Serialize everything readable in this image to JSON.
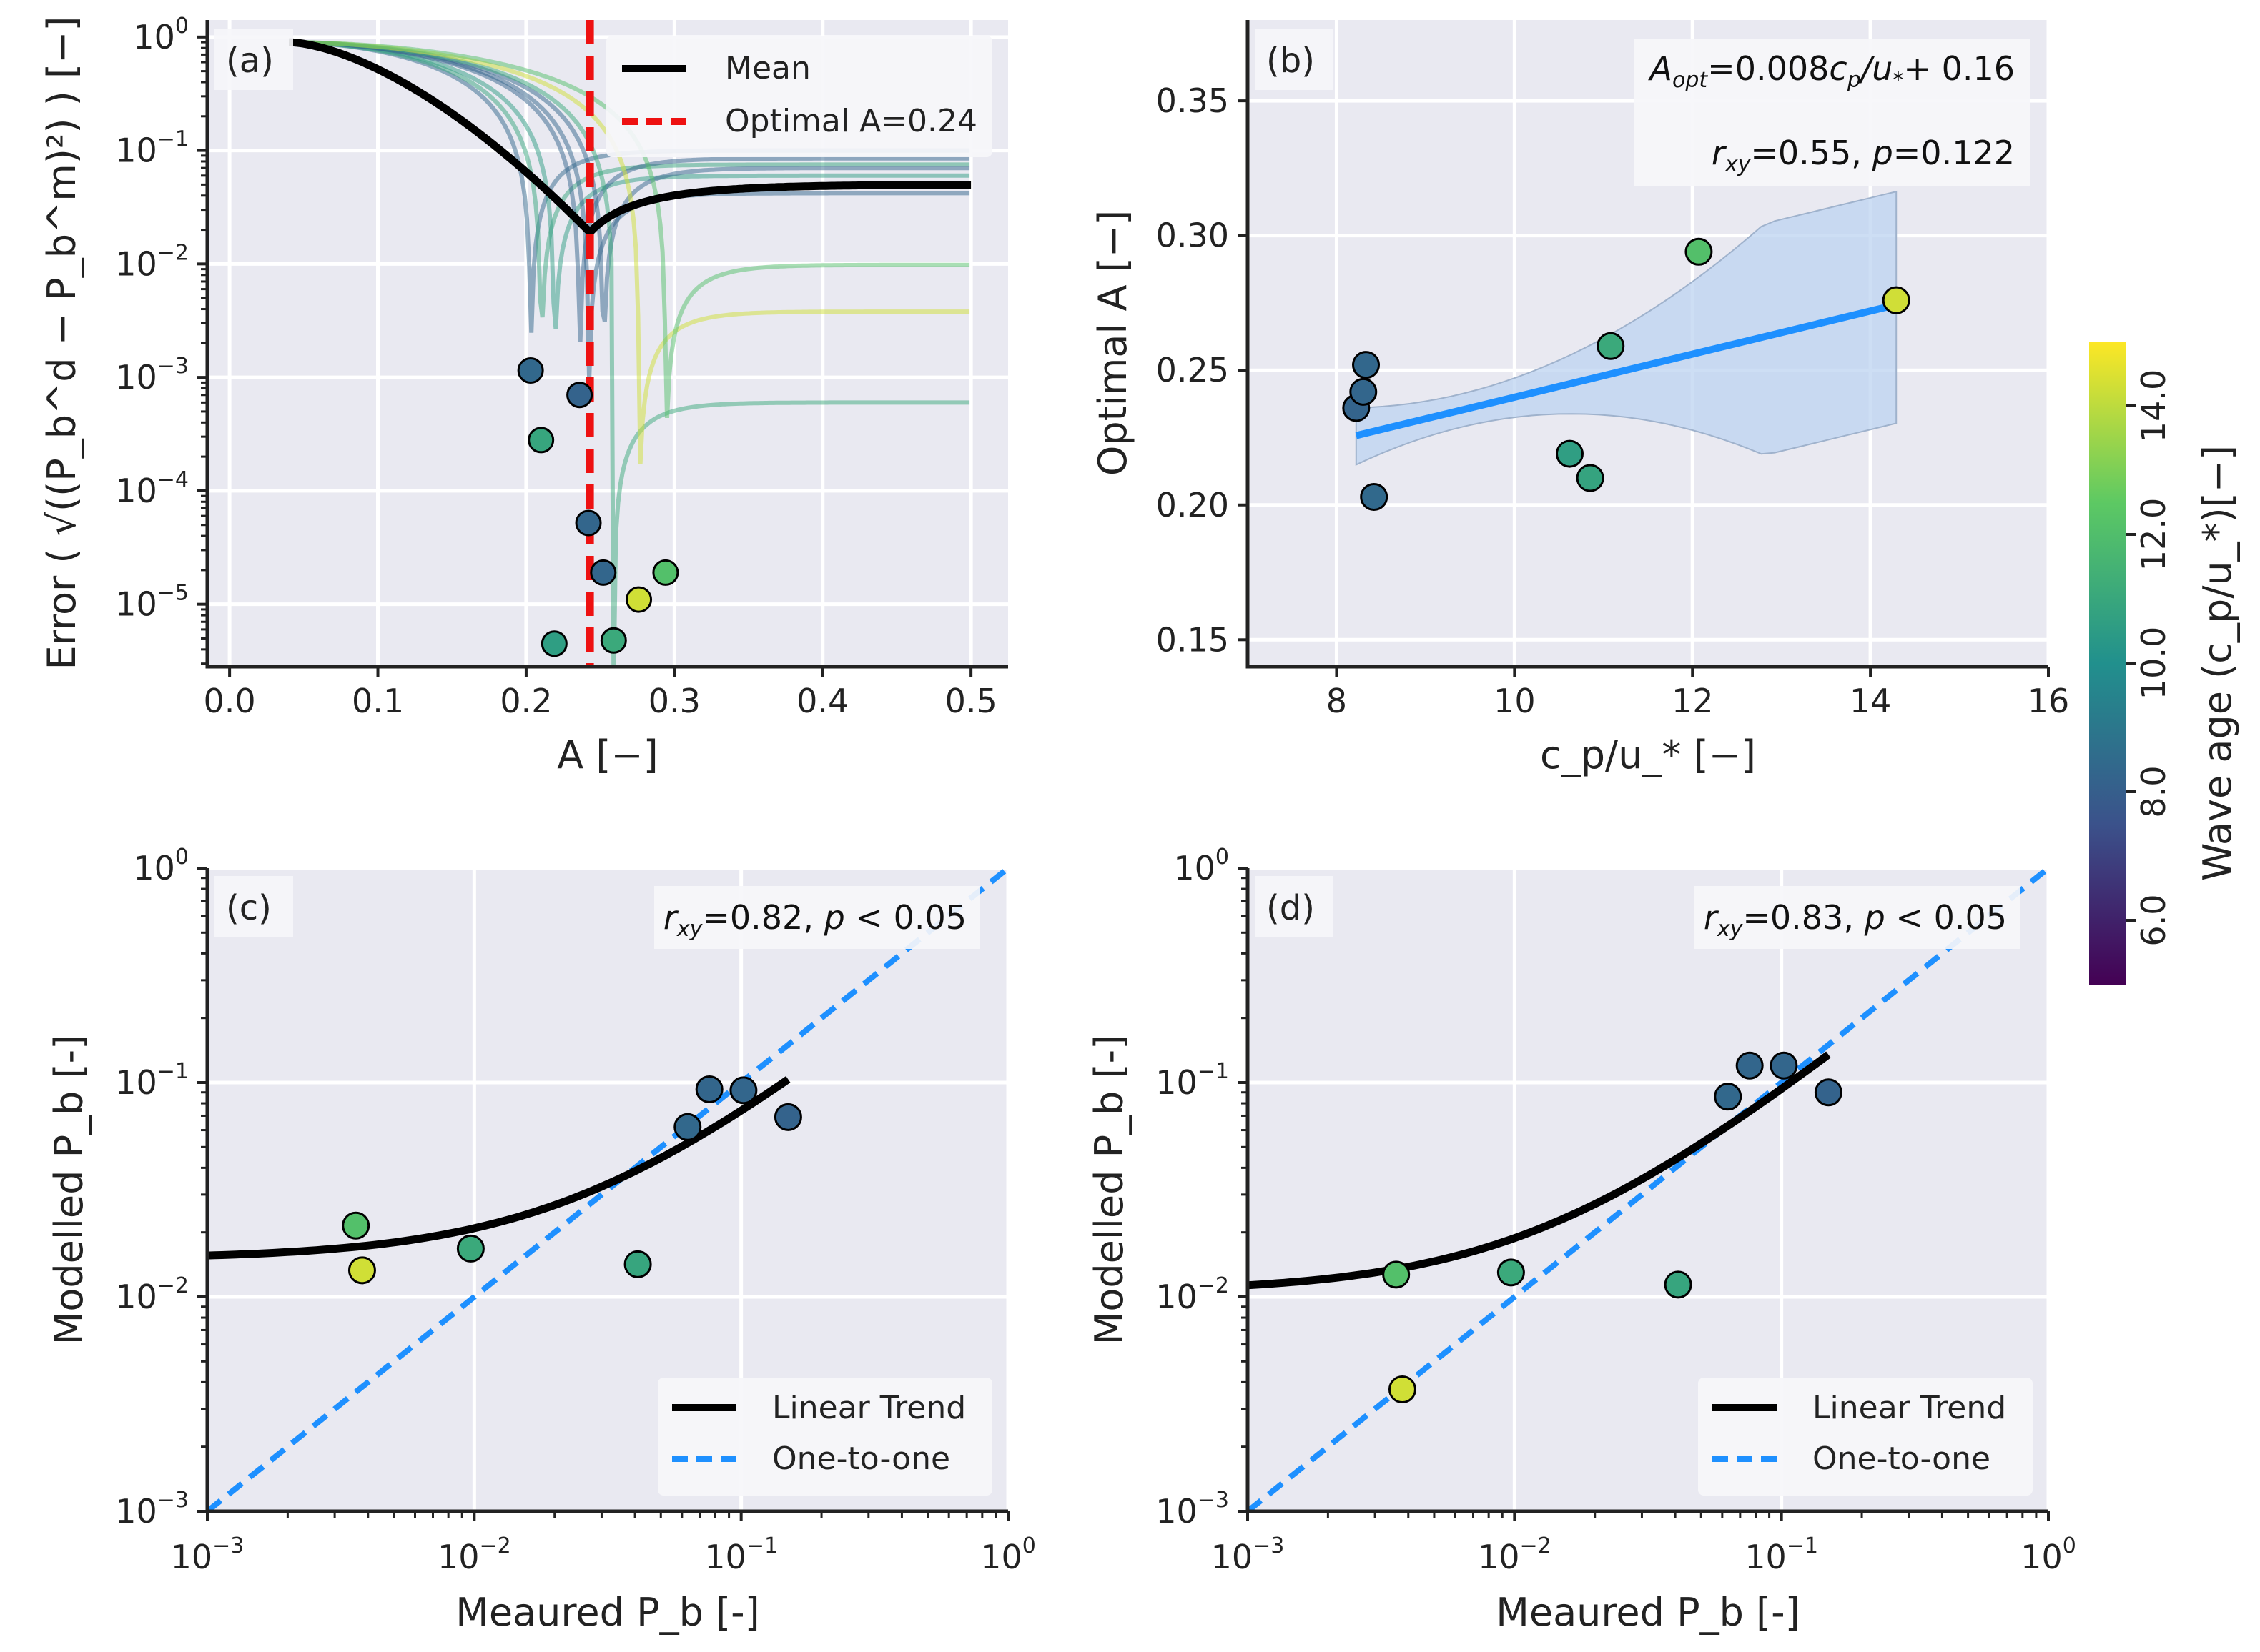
{
  "colors": {
    "axes_bg": "#e9e9f1",
    "grid": "#ffffff",
    "mean": "#000000",
    "optimal": "#ee1111",
    "fit": "#1e90ff",
    "band": "#bcd3f0",
    "viridis": [
      "#440154",
      "#3b528b",
      "#21908d",
      "#5dc963",
      "#fde725"
    ]
  },
  "chart_data": [
    {
      "id": "a",
      "type": "line",
      "panel_label": "(a)",
      "xlabel": "A [−]",
      "ylabel": "Error ( √((P_b^d − P_b^m)²) ) [−]",
      "xlim": [
        -0.015,
        0.525
      ],
      "ylim_log10": [
        -5.55,
        0.15
      ],
      "xticks": [
        "0.0",
        "0.1",
        "0.2",
        "0.3",
        "0.4",
        "0.5"
      ],
      "xtick_values": [
        0,
        0.1,
        0.2,
        0.3,
        0.4,
        0.5
      ],
      "yticks_exp": [
        "0",
        "-1",
        "-2",
        "-3",
        "-4",
        "-5"
      ],
      "legend": [
        "Mean",
        "Optimal A=0.24"
      ],
      "legend_position": "top-right",
      "optimal_A": 0.243,
      "mean_curve": {
        "A_min": 0.243,
        "err_min": 0.019,
        "err_inf": 0.05,
        "err_0": 0.9
      },
      "series": [
        {
          "A_opt": 0.203,
          "err_min": 0.00115,
          "err_inf": 0.1,
          "wave_age": 8.4
        },
        {
          "A_opt": 0.21,
          "err_min": 0.00028,
          "err_inf": 0.075,
          "wave_age": 10.9
        },
        {
          "A_opt": 0.219,
          "err_min": 4.5e-06,
          "err_inf": 0.06,
          "wave_age": 10.6
        },
        {
          "A_opt": 0.236,
          "err_min": 0.0007,
          "err_inf": 0.085,
          "wave_age": 8.2
        },
        {
          "A_opt": 0.242,
          "err_min": 5.2e-05,
          "err_inf": 0.042,
          "wave_age": 8.3
        },
        {
          "A_opt": 0.252,
          "err_min": 1.9e-05,
          "err_inf": 0.07,
          "wave_age": 8.3
        },
        {
          "A_opt": 0.259,
          "err_min": 4.8e-06,
          "err_inf": 0.0006,
          "wave_age": 11.1
        },
        {
          "A_opt": 0.276,
          "err_min": 1.1e-05,
          "err_inf": 0.0038,
          "wave_age": 14.3
        },
        {
          "A_opt": 0.294,
          "err_min": 1.9e-05,
          "err_inf": 0.0098,
          "wave_age": 12.1
        }
      ]
    },
    {
      "id": "b",
      "type": "scatter",
      "panel_label": "(b)",
      "xlabel": "c_p/u_* [−]",
      "ylabel": "Optimal A [−]",
      "xlim": [
        7,
        16
      ],
      "ylim": [
        0.14,
        0.38
      ],
      "xticks": [
        "8",
        "10",
        "12",
        "14",
        "16"
      ],
      "xtick_values": [
        8,
        10,
        12,
        14,
        16
      ],
      "yticks": [
        "0.15",
        "0.20",
        "0.25",
        "0.30",
        "0.35"
      ],
      "ytick_values": [
        0.15,
        0.2,
        0.25,
        0.3,
        0.35
      ],
      "annotation": {
        "line1": "=0.008",
        "line1b": "+ 0.16",
        "line2": "=0.55, ",
        "line2b": "=0.122"
      },
      "fit": {
        "slope": 0.008,
        "intercept": 0.16,
        "x_range": [
          8.22,
          14.29
        ]
      },
      "points": [
        {
          "x": 8.22,
          "y": 0.236,
          "wave_age": 8.22
        },
        {
          "x": 8.3,
          "y": 0.242,
          "wave_age": 8.3
        },
        {
          "x": 8.33,
          "y": 0.252,
          "wave_age": 8.33
        },
        {
          "x": 8.42,
          "y": 0.203,
          "wave_age": 8.42
        },
        {
          "x": 10.62,
          "y": 0.219,
          "wave_age": 10.62
        },
        {
          "x": 10.85,
          "y": 0.21,
          "wave_age": 10.85
        },
        {
          "x": 11.08,
          "y": 0.259,
          "wave_age": 11.08
        },
        {
          "x": 12.07,
          "y": 0.294,
          "wave_age": 12.07
        },
        {
          "x": 14.29,
          "y": 0.276,
          "wave_age": 14.29
        }
      ]
    },
    {
      "id": "c",
      "type": "scatter",
      "panel_label": "(c)",
      "xlabel": "Meaured P_b [-]",
      "ylabel": "Modelled P_b [-]",
      "xlim_log10": [
        -3,
        0
      ],
      "ylim_log10": [
        -3,
        0
      ],
      "xticks_exp": [
        "-3",
        "-2",
        "-1",
        "0"
      ],
      "yticks_exp": [
        "-3",
        "-2",
        "-1",
        "0"
      ],
      "annotation": {
        "r": "=0.82, ",
        "p": " < 0.05"
      },
      "legend": [
        "Linear Trend",
        "One-to-one"
      ],
      "legend_position": "lower-right",
      "trend": {
        "a": 0.59,
        "b": 0.015,
        "x_max": 0.15
      },
      "points": [
        {
          "x": 0.0036,
          "y": 0.0215,
          "wave_age": 12.1
        },
        {
          "x": 0.0038,
          "y": 0.0133,
          "wave_age": 14.3
        },
        {
          "x": 0.0097,
          "y": 0.0168,
          "wave_age": 11.1
        },
        {
          "x": 0.041,
          "y": 0.0142,
          "wave_age": 10.9
        },
        {
          "x": 0.063,
          "y": 0.062,
          "wave_age": 8.4
        },
        {
          "x": 0.076,
          "y": 0.093,
          "wave_age": 8.3
        },
        {
          "x": 0.102,
          "y": 0.092,
          "wave_age": 8.3
        },
        {
          "x": 0.15,
          "y": 0.069,
          "wave_age": 8.2
        }
      ]
    },
    {
      "id": "d",
      "type": "scatter",
      "panel_label": "(d)",
      "xlabel": "Meaured P_b [-]",
      "ylabel": "Modelled P_b [-]",
      "xlim_log10": [
        -3,
        0
      ],
      "ylim_log10": [
        -3,
        0
      ],
      "xticks_exp": [
        "-3",
        "-2",
        "-1",
        "0"
      ],
      "yticks_exp": [
        "-3",
        "-2",
        "-1",
        "0"
      ],
      "annotation": {
        "r": "=0.83, ",
        "p": " < 0.05"
      },
      "legend": [
        "Linear Trend",
        "One-to-one"
      ],
      "legend_position": "lower-right",
      "trend": {
        "a": 0.83,
        "b": 0.0105,
        "x_max": 0.15
      },
      "points": [
        {
          "x": 0.0036,
          "y": 0.0127,
          "wave_age": 12.1
        },
        {
          "x": 0.0038,
          "y": 0.0037,
          "wave_age": 14.3
        },
        {
          "x": 0.0097,
          "y": 0.013,
          "wave_age": 11.1
        },
        {
          "x": 0.041,
          "y": 0.0114,
          "wave_age": 10.9
        },
        {
          "x": 0.063,
          "y": 0.086,
          "wave_age": 8.4
        },
        {
          "x": 0.076,
          "y": 0.12,
          "wave_age": 8.3
        },
        {
          "x": 0.102,
          "y": 0.12,
          "wave_age": 8.3
        },
        {
          "x": 0.15,
          "y": 0.09,
          "wave_age": 8.2
        }
      ]
    }
  ],
  "colorbar": {
    "label": "Wave age (c_p/u_*)[−]",
    "range": [
      5,
      15
    ],
    "ticks": [
      "6.0",
      "8.0",
      "10.0",
      "12.0",
      "14.0"
    ],
    "tick_values": [
      6,
      8,
      10,
      12,
      14
    ]
  }
}
